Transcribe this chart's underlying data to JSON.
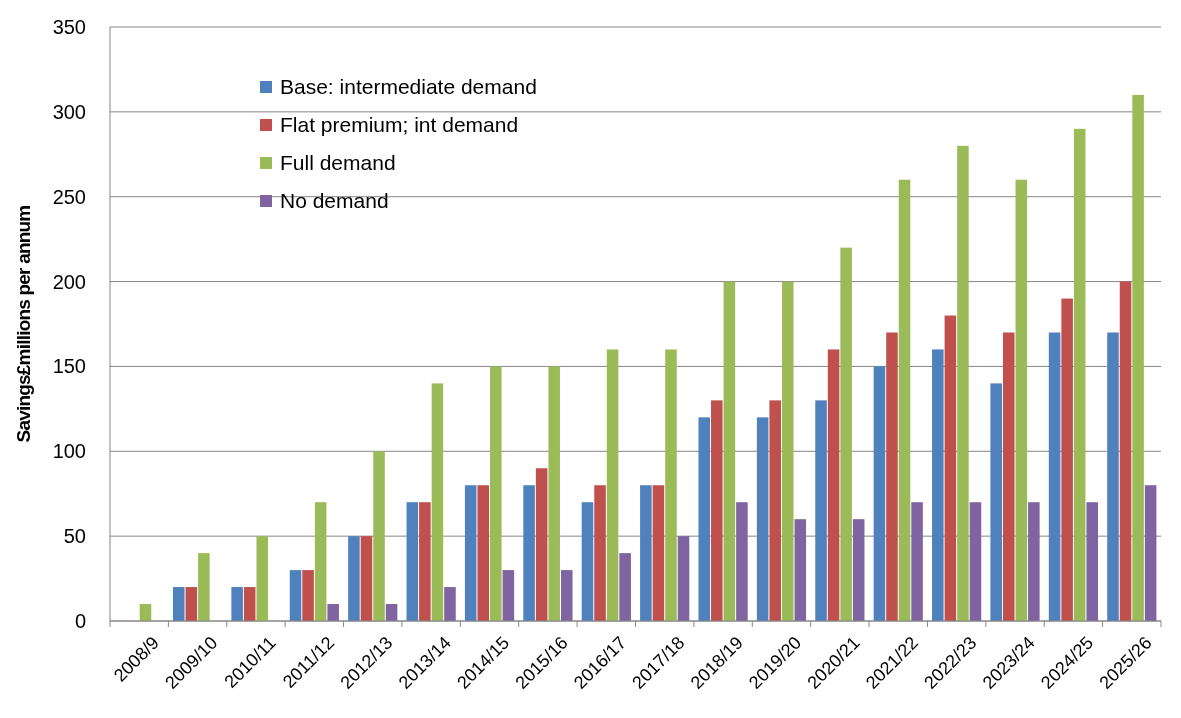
{
  "chart_data": {
    "type": "bar",
    "ylabel": "Savings£millions per annum",
    "categories": [
      "2008/9",
      "2009/10",
      "2010/11",
      "2011/12",
      "2012/13",
      "2013/14",
      "2014/15",
      "2015/16",
      "2016/17",
      "2017/18",
      "2018/19",
      "2019/20",
      "2020/21",
      "2021/22",
      "2022/23",
      "2023/24",
      "2024/25",
      "2025/26"
    ],
    "series": [
      {
        "name": "Base: intermediate demand",
        "color": "#4f81bd",
        "values": [
          0,
          20,
          20,
          30,
          50,
          70,
          80,
          80,
          70,
          80,
          120,
          120,
          130,
          150,
          160,
          140,
          170,
          170
        ]
      },
      {
        "name": "Flat premium; int demand",
        "color": "#c0504d",
        "values": [
          0,
          20,
          20,
          30,
          50,
          70,
          80,
          90,
          80,
          80,
          130,
          130,
          160,
          170,
          180,
          170,
          190,
          200
        ]
      },
      {
        "name": "Full demand",
        "color": "#9bbb59",
        "values": [
          10,
          40,
          50,
          70,
          100,
          140,
          150,
          150,
          160,
          160,
          200,
          200,
          220,
          260,
          280,
          260,
          290,
          310
        ]
      },
      {
        "name": "No demand",
        "color": "#8064a2",
        "values": [
          0,
          0,
          0,
          10,
          10,
          20,
          30,
          30,
          40,
          50,
          70,
          60,
          60,
          70,
          70,
          70,
          70,
          80
        ]
      }
    ],
    "ylim": [
      0,
      350
    ],
    "yticks": [
      0,
      50,
      100,
      150,
      200,
      250,
      300,
      350
    ],
    "grid": "y",
    "legend": "top left"
  }
}
